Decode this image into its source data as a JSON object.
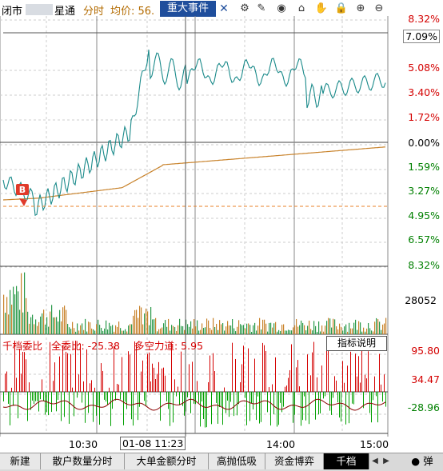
{
  "header": {
    "market_status": "闭市",
    "stock_name": "星通",
    "view_label": "分时",
    "avg_price_label": "均价: 56.",
    "event_tab": "重大事件",
    "close_glyph": "✕",
    "tools": [
      {
        "icon": "settings-icon",
        "glyph": "⚙"
      },
      {
        "icon": "pen-icon",
        "glyph": "✎"
      },
      {
        "icon": "eye-icon",
        "glyph": "◉"
      },
      {
        "icon": "box-icon",
        "glyph": "⌂"
      },
      {
        "icon": "hand-icon",
        "glyph": "✋"
      },
      {
        "icon": "lock-icon",
        "glyph": "🔒"
      },
      {
        "icon": "zoom-in-icon",
        "glyph": "⊕"
      },
      {
        "icon": "zoom-out-icon",
        "glyph": "⊖"
      }
    ]
  },
  "price_axis": {
    "labels": [
      {
        "text": "8.32%",
        "color": "#d40000"
      },
      {
        "text": "7.09%",
        "color": "#000000",
        "boxed": true
      },
      {
        "text": "5.08%",
        "color": "#d40000"
      },
      {
        "text": "3.40%",
        "color": "#d40000"
      },
      {
        "text": "1.72%",
        "color": "#d40000"
      },
      {
        "text": "0.00%",
        "color": "#000000"
      },
      {
        "text": "1.59%",
        "color": "#008000"
      },
      {
        "text": "3.27%",
        "color": "#008000"
      },
      {
        "text": "4.95%",
        "color": "#008000"
      },
      {
        "text": "6.57%",
        "color": "#008000"
      },
      {
        "text": "8.32%",
        "color": "#008000"
      }
    ]
  },
  "volume_axis": {
    "label": "28052"
  },
  "buy_marker": "B",
  "order_ratio": {
    "title": "千档委比",
    "total_label": "全委比: -25.38",
    "long_short_label": "多空力道: 5.95",
    "button": "指标说明",
    "axis_labels": [
      "95.80",
      "34.47",
      "-28.96"
    ]
  },
  "time_axis": {
    "labels": [
      "10:30",
      "14:00",
      "15:00"
    ],
    "crosshair_time": "01-08 11:23"
  },
  "tabs": [
    {
      "label": "新建",
      "active": false
    },
    {
      "label": "散户数量分时",
      "active": false
    },
    {
      "label": "大单金额分时",
      "active": false
    },
    {
      "label": "高抛低吸",
      "active": false
    },
    {
      "label": "资金博弈",
      "active": false
    },
    {
      "label": "千档",
      "active": true
    }
  ],
  "float_button": "● 弹",
  "colors": {
    "price_line": "#1a8a8a",
    "avg_line": "#c8822a",
    "up": "#d40000",
    "down": "#008000",
    "accent": "#1f4e9c"
  }
}
